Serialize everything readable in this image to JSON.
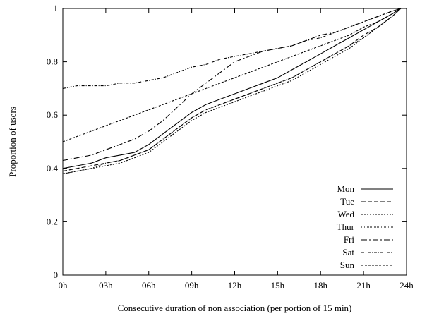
{
  "chart_data": {
    "type": "line",
    "title": "",
    "xlabel": "Consecutive duration of non association (per portion of 15 min)",
    "ylabel": "Proportion of users",
    "x_ticks": [
      "0h",
      "03h",
      "06h",
      "09h",
      "12h",
      "15h",
      "18h",
      "21h",
      "24h"
    ],
    "y_ticks": [
      "0",
      "0.2",
      "0.4",
      "0.6",
      "0.8",
      "1"
    ],
    "xlim": [
      0,
      24
    ],
    "ylim": [
      0,
      1
    ],
    "grid": false,
    "legend": "bottom-right",
    "series": [
      {
        "name": "Mon",
        "dash": "none",
        "x": [
          0,
          1,
          2,
          3,
          4,
          5,
          6,
          7,
          8,
          9,
          10,
          11,
          12,
          13,
          14,
          15,
          16,
          17,
          18,
          19,
          20,
          21,
          22,
          23,
          23.6
        ],
        "y": [
          0.4,
          0.41,
          0.42,
          0.44,
          0.45,
          0.46,
          0.49,
          0.53,
          0.57,
          0.61,
          0.64,
          0.66,
          0.68,
          0.7,
          0.72,
          0.74,
          0.77,
          0.8,
          0.83,
          0.86,
          0.89,
          0.92,
          0.95,
          0.98,
          1.0
        ]
      },
      {
        "name": "Tue",
        "dash": "6,3",
        "x": [
          0,
          1,
          2,
          3,
          4,
          5,
          6,
          7,
          8,
          9,
          10,
          11,
          12,
          13,
          14,
          15,
          16,
          17,
          18,
          19,
          20,
          21,
          22,
          23,
          23.6
        ],
        "y": [
          0.39,
          0.4,
          0.41,
          0.42,
          0.43,
          0.45,
          0.47,
          0.51,
          0.55,
          0.59,
          0.62,
          0.64,
          0.66,
          0.68,
          0.7,
          0.72,
          0.74,
          0.77,
          0.8,
          0.83,
          0.86,
          0.9,
          0.93,
          0.97,
          1.0
        ]
      },
      {
        "name": "Wed",
        "dash": "2,2",
        "x": [
          0,
          1,
          2,
          3,
          4,
          5,
          6,
          7,
          8,
          9,
          10,
          11,
          12,
          13,
          14,
          15,
          16,
          17,
          18,
          19,
          20,
          21,
          22,
          23,
          23.6
        ],
        "y": [
          0.38,
          0.39,
          0.4,
          0.41,
          0.42,
          0.44,
          0.46,
          0.5,
          0.54,
          0.58,
          0.61,
          0.63,
          0.65,
          0.67,
          0.69,
          0.71,
          0.73,
          0.76,
          0.79,
          0.82,
          0.85,
          0.89,
          0.93,
          0.97,
          1.0
        ]
      },
      {
        "name": "Thur",
        "dash": "1,1",
        "x": [
          0,
          1,
          2,
          3,
          4,
          5,
          6,
          7,
          8,
          9,
          10,
          11,
          12,
          13,
          14,
          15,
          16,
          17,
          18,
          19,
          20,
          21,
          22,
          23,
          23.6
        ],
        "y": [
          0.38,
          0.39,
          0.4,
          0.42,
          0.43,
          0.45,
          0.47,
          0.51,
          0.55,
          0.59,
          0.62,
          0.64,
          0.66,
          0.68,
          0.7,
          0.72,
          0.74,
          0.77,
          0.8,
          0.83,
          0.86,
          0.89,
          0.93,
          0.97,
          1.0
        ]
      },
      {
        "name": "Fri",
        "dash": "8,3,2,3",
        "x": [
          0,
          1,
          2,
          3,
          4,
          5,
          6,
          7,
          8,
          9,
          10,
          11,
          12,
          13,
          14,
          15,
          16,
          17,
          18,
          19,
          20,
          21,
          22,
          23,
          23.6
        ],
        "y": [
          0.43,
          0.44,
          0.45,
          0.47,
          0.49,
          0.51,
          0.54,
          0.58,
          0.63,
          0.68,
          0.72,
          0.76,
          0.8,
          0.82,
          0.84,
          0.85,
          0.86,
          0.88,
          0.9,
          0.91,
          0.93,
          0.95,
          0.97,
          0.99,
          1.0
        ]
      },
      {
        "name": "Sat",
        "dash": "4,2,1,2",
        "x": [
          0,
          1,
          2,
          3,
          4,
          5,
          6,
          7,
          8,
          9,
          10,
          11,
          12,
          13,
          14,
          15,
          16,
          17,
          18,
          19,
          20,
          21,
          22,
          23,
          23.6
        ],
        "y": [
          0.7,
          0.71,
          0.71,
          0.71,
          0.72,
          0.72,
          0.73,
          0.74,
          0.76,
          0.78,
          0.79,
          0.81,
          0.82,
          0.83,
          0.84,
          0.85,
          0.86,
          0.88,
          0.89,
          0.91,
          0.93,
          0.95,
          0.97,
          0.99,
          1.0
        ]
      },
      {
        "name": "Sun",
        "dash": "3,2",
        "x": [
          0,
          1,
          2,
          3,
          4,
          5,
          6,
          7,
          8,
          9,
          10,
          11,
          12,
          13,
          14,
          15,
          16,
          17,
          18,
          19,
          20,
          21,
          22,
          23,
          23.6
        ],
        "y": [
          0.5,
          0.52,
          0.54,
          0.56,
          0.58,
          0.6,
          0.62,
          0.64,
          0.66,
          0.68,
          0.7,
          0.72,
          0.74,
          0.76,
          0.78,
          0.8,
          0.82,
          0.84,
          0.86,
          0.88,
          0.9,
          0.93,
          0.95,
          0.98,
          1.0
        ]
      }
    ]
  }
}
